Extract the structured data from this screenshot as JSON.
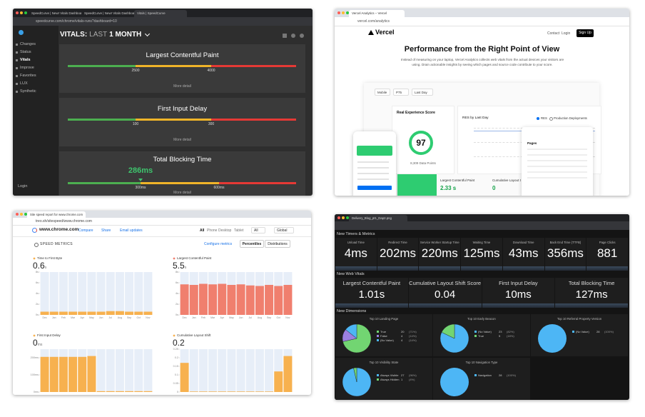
{
  "speedcurve": {
    "tabs": [
      "SpeedCurve | New! Vitals Dashboard",
      "SpeedCurve | New! Vitals Dashboard",
      "Vitals | SpeedCurve"
    ],
    "url": "speedcurve.com/chrome/vitals-runs?dashboard=10",
    "nav": [
      "Changes",
      "Status",
      "Vitals",
      "Improve",
      "Favorites",
      "LUX",
      "Synthetic"
    ],
    "login": "Login",
    "heading": "VITALS:",
    "period_prefix": "LAST",
    "period": "1 MONTH",
    "cards": [
      {
        "title": "Largest Contentful Paint",
        "thresholds": [
          2500,
          4000
        ],
        "more": "More detail"
      },
      {
        "title": "First Input Delay",
        "thresholds": [
          100,
          300
        ],
        "more": "More detail"
      },
      {
        "title": "Total Blocking Time",
        "value": "286ms",
        "thresholds": [
          "300ms",
          "600ms"
        ],
        "more": "More detail"
      }
    ]
  },
  "vercel": {
    "tab": "Vercel Analytics – Vercel",
    "url": "vercel.com/analytics",
    "logo": "Vercel",
    "nav": [
      "Contact",
      "Login"
    ],
    "cta": "Sign Up",
    "title": "Performance from the Right Point of View",
    "intro": "Instead of measuring on your laptop, Vercel Analytics collects web vitals from the actual devices your visitors are using. Drain actionable insights by seeing which pages and source code contribute to your score.",
    "filters": [
      "Mobile",
      "P75",
      "Last Day"
    ],
    "score_title": "Real Experience Score",
    "score": 97,
    "data_points": "8,309 Data Points",
    "chart_title": "RES by Last Day",
    "legend": [
      "RES",
      "Production Deployments"
    ],
    "pages": "Pages",
    "metrics": [
      {
        "name": "Largest Contentful Paint",
        "value": "2.33 s"
      },
      {
        "name": "Cumulative Layout Shift",
        "value": 0
      }
    ]
  },
  "treo": {
    "tab": "Site speed report for www.chrome.com",
    "url": "treo.sh/sitespeed/www.chrome.com",
    "site": "www.chrome.com",
    "actions": [
      "Compare",
      "Share",
      "Email updates"
    ],
    "devices": [
      "All",
      "Phone",
      "Desktop",
      "Tablet"
    ],
    "filters": [
      "All",
      "Global"
    ],
    "section": "SPEED METRICS",
    "configure": "Configure metrics",
    "views": [
      "Percentiles",
      "Distributions"
    ],
    "months": [
      "Dec",
      "Jan",
      "Feb",
      "Mar",
      "Apr",
      "May",
      "Jun",
      "Jul",
      "Aug",
      "Sep",
      "Oct",
      "Nov"
    ],
    "charts": [
      {
        "title": "Time to First Byte",
        "value": 0.6,
        "unit": "s",
        "color": "#f7b14f",
        "ylim": [
          0,
          8
        ],
        "yticks": [
          {
            "value": 0,
            "label": "0s"
          },
          {
            "value": 2,
            "label": "2s"
          },
          {
            "value": 4,
            "label": "4s"
          },
          {
            "value": 6,
            "label": "6s"
          },
          {
            "value": 8,
            "label": "8s"
          }
        ],
        "values": [
          0.6,
          0.6,
          0.6,
          0.6,
          0.6,
          0.6,
          0.6,
          0.7,
          0.7,
          0.6,
          0.6,
          0.6
        ]
      },
      {
        "title": "Largest Contentful Paint",
        "value": 5.5,
        "unit": "s",
        "color": "#f07f6e",
        "ylim": [
          0,
          8
        ],
        "yticks": [
          {
            "value": 0,
            "label": "0s"
          },
          {
            "value": 2,
            "label": "2s"
          },
          {
            "value": 4,
            "label": "4s"
          },
          {
            "value": 6,
            "label": "6s"
          },
          {
            "value": 8,
            "label": "8s"
          }
        ],
        "values": [
          5.7,
          5.6,
          5.8,
          5.7,
          5.8,
          5.6,
          5.7,
          5.5,
          5.4,
          5.6,
          5.4,
          5.6
        ]
      },
      {
        "title": "First Input Delay",
        "value": 0,
        "unit": "ms",
        "color": "#f7b14f",
        "ylim": [
          0,
          250
        ],
        "yticks": [
          {
            "value": 0,
            "label": "0ms"
          },
          {
            "value": 100,
            "label": "100ms"
          },
          {
            "value": 200,
            "label": "200ms"
          }
        ],
        "values": [
          205,
          205,
          205,
          205,
          205,
          210,
          5,
          5,
          5,
          5,
          5,
          5
        ]
      },
      {
        "title": "Cumulative Layout Shift",
        "value": 0.2,
        "unit": "",
        "color": "#f7b14f",
        "ylim": [
          0,
          0.25
        ],
        "yticks": [
          0,
          0.05,
          0.1,
          0.15,
          0.2,
          0.25
        ],
        "values": [
          0.17,
          0.003,
          0.003,
          0.003,
          0.003,
          0.003,
          0.003,
          0.003,
          0.003,
          0.003,
          0.12,
          0.21
        ]
      }
    ]
  },
  "dashboard": {
    "tab": "Delivery_Blog_pt1_Dap2.png",
    "sections": [
      "New Timers & Metrics",
      "New Web Vitals",
      "New Dimensions"
    ],
    "timers": [
      {
        "label": "Unload Time",
        "value": "4ms"
      },
      {
        "label": "Redirect Time",
        "value": "202ms"
      },
      {
        "label": "Service Worker Startup Time",
        "value": "220ms"
      },
      {
        "label": "Waiting Time",
        "value": "125ms"
      },
      {
        "label": "Download Time",
        "value": "43ms"
      },
      {
        "label": "Back End Time (TTFB)",
        "value": "356ms"
      },
      {
        "label": "Page Clicks",
        "value": 881
      }
    ],
    "vitals": [
      {
        "label": "Largest Contentful Paint",
        "value": "1.01s"
      },
      {
        "label": "Cumulative Layout Shift Score",
        "value": 0.04
      },
      {
        "label": "First Input Delay",
        "value": "10ms"
      },
      {
        "label": "Total Blocking Time",
        "value": "127ms"
      }
    ],
    "dimensions": [
      {
        "title": "Top 10 Landing Page",
        "rows": [
          {
            "name": "True",
            "count": 20,
            "pct": "(71%)",
            "color": "#72d572"
          },
          {
            "name": "False",
            "count": 4,
            "pct": "(14%)",
            "color": "#9b7fe0"
          },
          {
            "name": "(No Value)",
            "count": 4,
            "pct": "(14%)",
            "color": "#4db6f5"
          }
        ]
      },
      {
        "title": "Top 10 Early Beacon",
        "rows": [
          {
            "name": "(No Value)",
            "count": 23,
            "pct": "(82%)",
            "color": "#4db6f5"
          },
          {
            "name": "True",
            "count": 5,
            "pct": "(18%)",
            "color": "#72d572"
          }
        ]
      },
      {
        "title": "Top 10 Referral Property Version",
        "rows": [
          {
            "name": "(No Value)",
            "count": 28,
            "pct": "(100%)",
            "color": "#4db6f5"
          }
        ]
      },
      {
        "title": "Top 10 Visibility State",
        "rows": [
          {
            "name": "Always Visible",
            "count": 27,
            "pct": "(96%)",
            "color": "#4db6f5"
          },
          {
            "name": "Always Hidden",
            "count": 1,
            "pct": "(4%)",
            "color": "#72d572"
          }
        ]
      },
      {
        "title": "Top 10 Navigation Type",
        "rows": [
          {
            "name": "Navigation",
            "count": 28,
            "pct": "(100%)",
            "color": "#4db6f5"
          }
        ]
      }
    ]
  }
}
